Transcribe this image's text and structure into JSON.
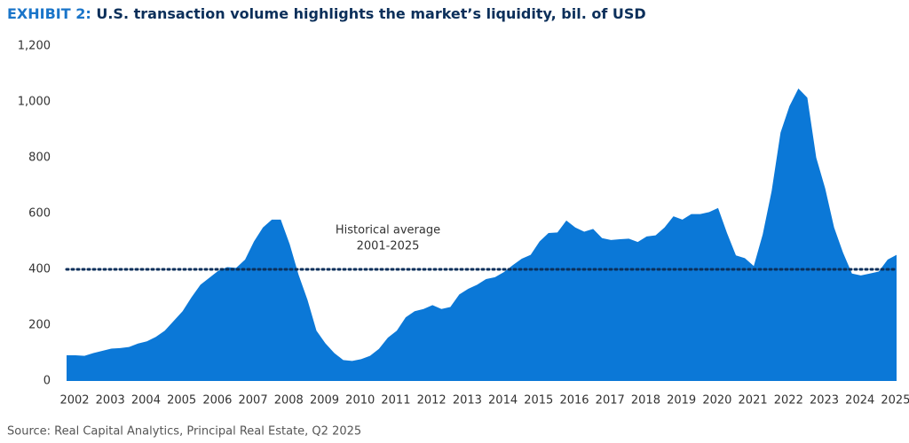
{
  "chart_data": {
    "type": "area",
    "title_label": "EXHIBIT 2:",
    "title": "U.S. transaction volume highlights the market’s liquidity, bil. of USD",
    "source": "Source: Real Capital Analytics, Principal Real Estate, Q2 2025",
    "x": [
      2002,
      2002.25,
      2002.5,
      2002.75,
      2003,
      2003.25,
      2003.5,
      2003.75,
      2004,
      2004.25,
      2004.5,
      2004.75,
      2005,
      2005.25,
      2005.5,
      2005.75,
      2006,
      2006.25,
      2006.5,
      2006.75,
      2007,
      2007.25,
      2007.5,
      2007.75,
      2008,
      2008.25,
      2008.5,
      2008.75,
      2009,
      2009.25,
      2009.5,
      2009.75,
      2010,
      2010.25,
      2010.5,
      2010.75,
      2011,
      2011.25,
      2011.5,
      2011.75,
      2012,
      2012.25,
      2012.5,
      2012.75,
      2013,
      2013.25,
      2013.5,
      2013.75,
      2014,
      2014.25,
      2014.5,
      2014.75,
      2015,
      2015.25,
      2015.5,
      2015.75,
      2016,
      2016.25,
      2016.5,
      2016.75,
      2017,
      2017.25,
      2017.5,
      2017.75,
      2018,
      2018.25,
      2018.5,
      2018.75,
      2019,
      2019.25,
      2019.5,
      2019.75,
      2020,
      2020.25,
      2020.5,
      2020.75,
      2021,
      2021.25,
      2021.5,
      2021.75,
      2022,
      2022.25,
      2022.5,
      2022.75,
      2023,
      2023.25,
      2023.5,
      2023.75,
      2024,
      2024.25,
      2024.5,
      2024.75,
      2025,
      2025.25
    ],
    "series": [
      {
        "color": "#0b78d7",
        "values": [
          92,
          92,
          90,
          100,
          108,
          116,
          118,
          122,
          134,
          142,
          158,
          180,
          215,
          250,
          300,
          345,
          370,
          395,
          408,
          405,
          435,
          500,
          550,
          578,
          578,
          490,
          380,
          290,
          180,
          135,
          100,
          75,
          72,
          78,
          90,
          115,
          155,
          180,
          228,
          250,
          258,
          272,
          258,
          265,
          310,
          330,
          345,
          365,
          372,
          390,
          415,
          438,
          452,
          500,
          530,
          532,
          575,
          550,
          535,
          545,
          512,
          505,
          508,
          510,
          498,
          518,
          522,
          550,
          590,
          578,
          598,
          598,
          605,
          620,
          530,
          450,
          440,
          412,
          525,
          680,
          890,
          985,
          1048,
          1015,
          800,
          690,
          550,
          460,
          385,
          378,
          385,
          392,
          435,
          452
        ]
      }
    ],
    "reference_line": {
      "value": 400,
      "color": "#0b2f5a",
      "label": [
        "Historical average",
        "2001-2025"
      ]
    },
    "xlim": [
      2002,
      2025.25
    ],
    "xticks": [
      2002,
      2003,
      2004,
      2005,
      2006,
      2007,
      2008,
      2009,
      2010,
      2011,
      2012,
      2013,
      2014,
      2015,
      2016,
      2017,
      2018,
      2019,
      2020,
      2021,
      2022,
      2023,
      2024,
      2025
    ],
    "ylim": [
      0,
      1200
    ],
    "yticks": [
      0,
      200,
      400,
      600,
      800,
      {
        "value": 1000,
        "label": "1,000"
      },
      {
        "value": 1200,
        "label": "1,200"
      }
    ]
  }
}
